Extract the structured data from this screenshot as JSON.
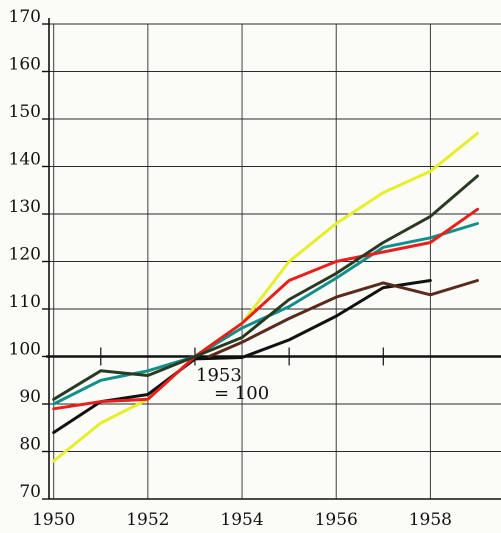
{
  "chart_data": {
    "type": "line",
    "title_fragment": "",
    "xlabel": "",
    "ylabel": "",
    "xlim": [
      1949.9,
      1959.5
    ],
    "ylim": [
      70,
      170
    ],
    "grid": true,
    "x_ticks": [
      1950,
      1952,
      1954,
      1956,
      1958
    ],
    "x_tick_labels": [
      "1950",
      "1952",
      "1954",
      "1956",
      "1958"
    ],
    "y_ticks": [
      70,
      80,
      90,
      100,
      110,
      120,
      130,
      140,
      150,
      160,
      170
    ],
    "y_tick_labels": [
      "70",
      "80",
      "90",
      "100",
      "110",
      "120",
      "130",
      "140",
      "150",
      "160",
      "170"
    ],
    "annotation": {
      "line1": "1953",
      "line2": "= 100",
      "x": 1953.3,
      "y": 96
    },
    "series": [
      {
        "color": "#e8ee2a",
        "x": [
          1950,
          1951,
          1952,
          1953,
          1954,
          1955,
          1956,
          1957,
          1958,
          1959
        ],
        "y": [
          78,
          86,
          91,
          100,
          107,
          120,
          128,
          134.5,
          139,
          147
        ]
      },
      {
        "color": "#111111",
        "x": [
          1950,
          1951,
          1952,
          1953,
          1954,
          1955,
          1956,
          1957,
          1958
        ],
        "y": [
          84,
          90.5,
          92,
          99.5,
          99.8,
          103.5,
          108.5,
          114.5,
          116
        ]
      },
      {
        "color": "#118f8a",
        "x": [
          1950,
          1951,
          1952,
          1953,
          1954,
          1955,
          1956,
          1957,
          1958,
          1959
        ],
        "y": [
          90,
          95,
          97,
          100,
          106,
          110.5,
          116.5,
          123,
          125,
          128
        ]
      },
      {
        "color": "#e8201c",
        "x": [
          1950,
          1951,
          1952,
          1953,
          1954,
          1955,
          1956,
          1957,
          1958,
          1959
        ],
        "y": [
          89,
          90.5,
          91,
          100,
          107,
          116,
          120,
          122,
          124,
          131
        ]
      },
      {
        "color": "#2a3a22",
        "x": [
          1950,
          1951,
          1952,
          1953,
          1954,
          1955,
          1956,
          1957,
          1958,
          1959
        ],
        "y": [
          91,
          97,
          96,
          100,
          104,
          112,
          117.5,
          124,
          129.5,
          138
        ]
      },
      {
        "color": "#5a2a1a",
        "x": [
          1953.3,
          1954,
          1955,
          1956,
          1957,
          1958,
          1959
        ],
        "y": [
          100,
          103,
          108,
          112.5,
          115.5,
          113,
          116
        ]
      }
    ],
    "reference_line": {
      "y": 100,
      "color": "#111111"
    }
  }
}
